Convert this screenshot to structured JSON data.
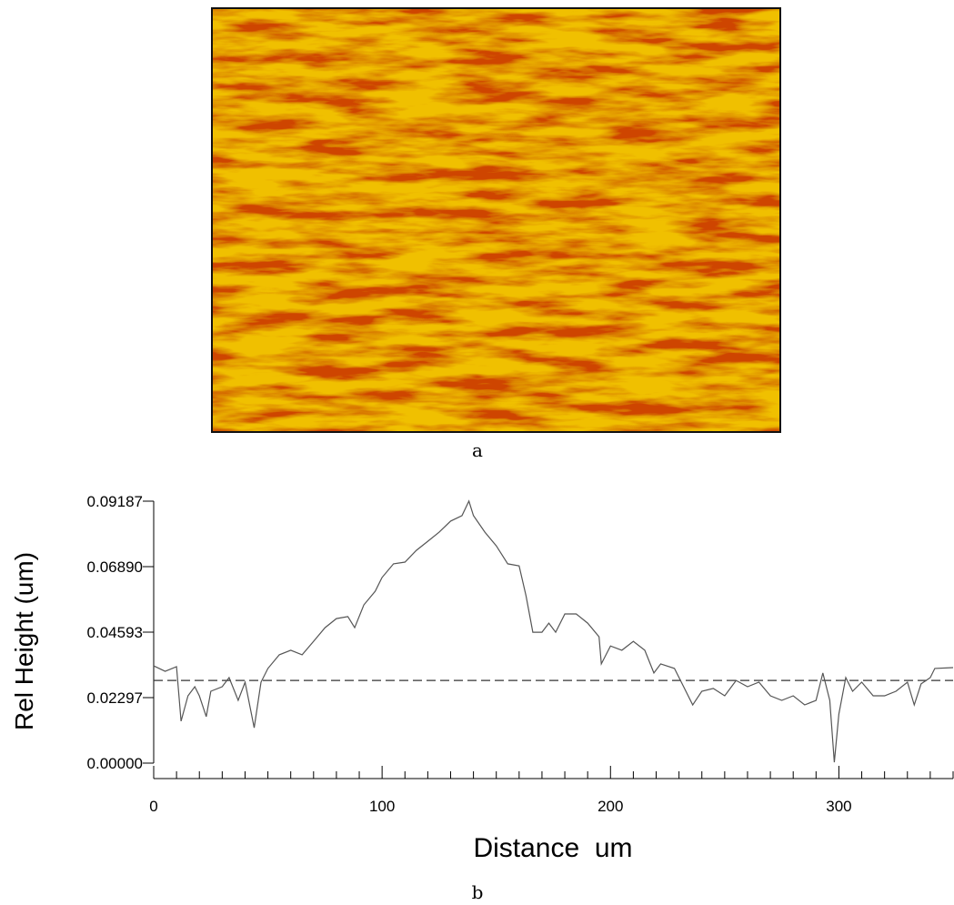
{
  "figure": {
    "panel_a_label": "a",
    "panel_b_label": "b"
  },
  "chart_data": {
    "type": "line",
    "xlabel": "Distance  um",
    "ylabel": "Rel Height (um)",
    "xlim": [
      0,
      350
    ],
    "ylim": [
      0,
      0.09187
    ],
    "xticks": [
      0,
      100,
      200,
      300
    ],
    "xminorticks": [
      10,
      20,
      30,
      40,
      50,
      60,
      70,
      80,
      90,
      110,
      120,
      130,
      140,
      150,
      160,
      170,
      180,
      190,
      210,
      220,
      230,
      240,
      250,
      260,
      270,
      280,
      290,
      310,
      320,
      330,
      340,
      350
    ],
    "yticks": [
      {
        "value": 0,
        "label": "0.00000"
      },
      0.02297,
      0.04593,
      {
        "value": 0.0689,
        "label": "0.06890"
      },
      0.09187
    ],
    "reference_line": 0.029,
    "series": [
      {
        "color": "#555555",
        "x": [
          0,
          5,
          10,
          12,
          15,
          18,
          20,
          23,
          25,
          30,
          33,
          37,
          40,
          44,
          47,
          50,
          55,
          60,
          65,
          70,
          75,
          80,
          85,
          88,
          92,
          97,
          100,
          105,
          110,
          115,
          120,
          125,
          130,
          135,
          138,
          140,
          145,
          150,
          155,
          160,
          163,
          166,
          170,
          173,
          176,
          180,
          185,
          190,
          195,
          196,
          200,
          205,
          210,
          215,
          219,
          222,
          228,
          232,
          236,
          240,
          245,
          250,
          255,
          260,
          265,
          270,
          275,
          280,
          285,
          290,
          293,
          296,
          298,
          300,
          303,
          306,
          310,
          315,
          320,
          325,
          330,
          333,
          336,
          340,
          342,
          350
        ],
        "values": [
          0.0341,
          0.0322,
          0.0338,
          0.0147,
          0.0236,
          0.0268,
          0.0236,
          0.0163,
          0.0252,
          0.0268,
          0.03,
          0.022,
          0.0284,
          0.0124,
          0.0284,
          0.0332,
          0.038,
          0.0396,
          0.038,
          0.0427,
          0.0475,
          0.0507,
          0.0514,
          0.0475,
          0.0555,
          0.0603,
          0.0651,
          0.0699,
          0.0705,
          0.0746,
          0.0778,
          0.081,
          0.0849,
          0.0868,
          0.0919,
          0.0868,
          0.081,
          0.0762,
          0.0699,
          0.0692,
          0.0587,
          0.0459,
          0.0459,
          0.0491,
          0.0459,
          0.0523,
          0.0523,
          0.0491,
          0.0443,
          0.0348,
          0.0411,
          0.0396,
          0.0427,
          0.0396,
          0.0316,
          0.0348,
          0.0332,
          0.0268,
          0.0204,
          0.0252,
          0.0262,
          0.0236,
          0.029,
          0.0268,
          0.0284,
          0.0236,
          0.022,
          0.0236,
          0.0204,
          0.022,
          0.0316,
          0.022,
          0.0003,
          0.0172,
          0.03,
          0.0252,
          0.0284,
          0.0236,
          0.0236,
          0.0252,
          0.0284,
          0.0204,
          0.0278,
          0.03,
          0.0332,
          0.0335
        ]
      }
    ]
  }
}
